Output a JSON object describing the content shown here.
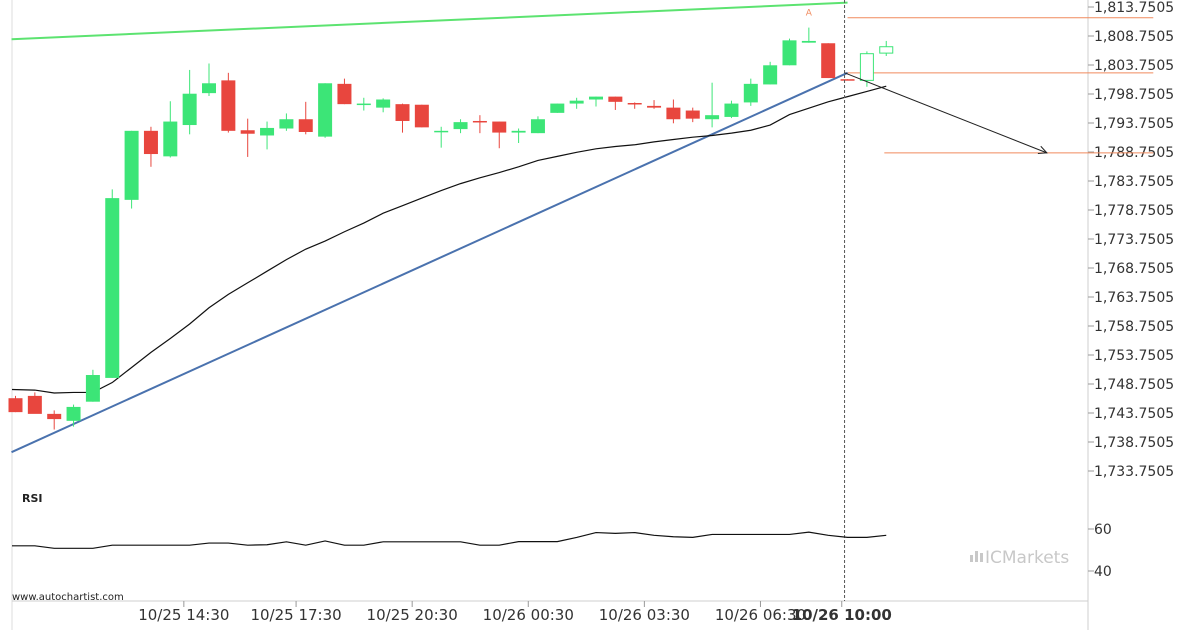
{
  "chart_data": {
    "type": "candlestick",
    "price_axis": {
      "ticks": [
        "1,813.7505",
        "1,808.7505",
        "1,803.7505",
        "1,798.7505",
        "1,793.7505",
        "1,788.7505",
        "1,783.7505",
        "1,778.7505",
        "1,773.7505",
        "1,768.7505",
        "1,763.7505",
        "1,758.7505",
        "1,753.7505",
        "1,748.7505",
        "1,743.7505",
        "1,738.7505",
        "1,733.7505"
      ],
      "tick_values": [
        1813.7505,
        1808.7505,
        1803.7505,
        1798.7505,
        1793.7505,
        1788.7505,
        1783.7505,
        1778.7505,
        1773.7505,
        1768.7505,
        1763.7505,
        1758.7505,
        1753.7505,
        1748.7505,
        1743.7505,
        1738.7505,
        1733.7505
      ]
    },
    "time_axis": {
      "labels": [
        "10/25 14:30",
        "10/25 17:30",
        "10/25 20:30",
        "10/26 00:30",
        "10/26 03:30",
        "10/26 06:30",
        "10/26 10:00"
      ],
      "label_candle_index": [
        8.7,
        14.5,
        20.5,
        26.5,
        32.5,
        38.5,
        42.7
      ],
      "highlight_label": "10/26 10:00"
    },
    "candles": [
      {
        "o": 1746.3,
        "h": 1746.7,
        "l": 1743.9,
        "c": 1743.9
      },
      {
        "o": 1746.7,
        "h": 1747.3,
        "l": 1743.9,
        "c": 1743.6
      },
      {
        "o": 1743.6,
        "h": 1744.2,
        "l": 1740.9,
        "c": 1742.7
      },
      {
        "o": 1742.4,
        "h": 1745.2,
        "l": 1741.4,
        "c": 1744.8
      },
      {
        "o": 1745.7,
        "h": 1751.2,
        "l": 1745.7,
        "c": 1750.3
      },
      {
        "o": 1749.8,
        "h": 1782.3,
        "l": 1749.8,
        "c": 1780.8
      },
      {
        "o": 1780.5,
        "h": 1792.4,
        "l": 1779.0,
        "c": 1792.4
      },
      {
        "o": 1792.4,
        "h": 1793.1,
        "l": 1786.2,
        "c": 1788.4
      },
      {
        "o": 1788.0,
        "h": 1797.5,
        "l": 1787.8,
        "c": 1794.0
      },
      {
        "o": 1793.4,
        "h": 1802.9,
        "l": 1791.8,
        "c": 1798.8
      },
      {
        "o": 1798.9,
        "h": 1804.0,
        "l": 1798.4,
        "c": 1800.6
      },
      {
        "o": 1801.1,
        "h": 1802.4,
        "l": 1792.1,
        "c": 1792.4
      },
      {
        "o": 1792.5,
        "h": 1794.5,
        "l": 1787.9,
        "c": 1791.9
      },
      {
        "o": 1791.6,
        "h": 1794.0,
        "l": 1789.2,
        "c": 1792.9
      },
      {
        "o": 1792.8,
        "h": 1795.4,
        "l": 1792.4,
        "c": 1794.4
      },
      {
        "o": 1794.4,
        "h": 1797.4,
        "l": 1791.8,
        "c": 1792.2
      },
      {
        "o": 1791.4,
        "h": 1800.6,
        "l": 1791.2,
        "c": 1800.6
      },
      {
        "o": 1800.5,
        "h": 1801.4,
        "l": 1797.0,
        "c": 1797.0
      },
      {
        "o": 1797.1,
        "h": 1798.1,
        "l": 1795.9,
        "c": 1797.1
      },
      {
        "o": 1796.4,
        "h": 1798.0,
        "l": 1795.6,
        "c": 1797.8
      },
      {
        "o": 1797.0,
        "h": 1797.1,
        "l": 1792.1,
        "c": 1794.1
      },
      {
        "o": 1796.9,
        "h": 1796.9,
        "l": 1793.0,
        "c": 1793.0
      },
      {
        "o": 1792.4,
        "h": 1793.1,
        "l": 1789.5,
        "c": 1792.4
      },
      {
        "o": 1792.7,
        "h": 1794.4,
        "l": 1792.0,
        "c": 1793.9
      },
      {
        "o": 1794.1,
        "h": 1795.1,
        "l": 1792.0,
        "c": 1793.9
      },
      {
        "o": 1794.0,
        "h": 1794.0,
        "l": 1789.4,
        "c": 1792.1
      },
      {
        "o": 1792.1,
        "h": 1792.8,
        "l": 1790.3,
        "c": 1792.4
      },
      {
        "o": 1792.0,
        "h": 1794.9,
        "l": 1792.0,
        "c": 1794.4
      },
      {
        "o": 1795.5,
        "h": 1797.1,
        "l": 1795.5,
        "c": 1797.1
      },
      {
        "o": 1797.1,
        "h": 1798.1,
        "l": 1796.2,
        "c": 1797.6
      },
      {
        "o": 1797.8,
        "h": 1798.3,
        "l": 1796.6,
        "c": 1798.3
      },
      {
        "o": 1798.3,
        "h": 1798.3,
        "l": 1796.0,
        "c": 1797.4
      },
      {
        "o": 1797.2,
        "h": 1797.3,
        "l": 1796.2,
        "c": 1797.1
      },
      {
        "o": 1796.7,
        "h": 1797.7,
        "l": 1796.2,
        "c": 1796.4
      },
      {
        "o": 1796.4,
        "h": 1797.8,
        "l": 1793.7,
        "c": 1794.4
      },
      {
        "o": 1795.9,
        "h": 1796.4,
        "l": 1793.9,
        "c": 1794.5
      },
      {
        "o": 1794.4,
        "h": 1800.7,
        "l": 1793.0,
        "c": 1795.1
      },
      {
        "o": 1794.8,
        "h": 1797.6,
        "l": 1794.6,
        "c": 1797.1
      },
      {
        "o": 1797.3,
        "h": 1801.4,
        "l": 1796.7,
        "c": 1800.5
      },
      {
        "o": 1800.4,
        "h": 1804.3,
        "l": 1800.4,
        "c": 1803.7
      },
      {
        "o": 1803.7,
        "h": 1808.3,
        "l": 1803.7,
        "c": 1808.0
      },
      {
        "o": 1807.6,
        "h": 1810.2,
        "l": 1807.6,
        "c": 1807.9
      },
      {
        "o": 1807.5,
        "h": 1807.5,
        "l": 1801.5,
        "c": 1801.5
      },
      {
        "o": 1801.3,
        "h": 1801.3,
        "l": 1801.2,
        "c": 1801.2
      },
      {
        "o": 1801.1,
        "h": 1806.1,
        "l": 1800.0,
        "c": 1805.7,
        "hollow": true
      },
      {
        "o": 1805.8,
        "h": 1807.9,
        "l": 1805.3,
        "c": 1806.9,
        "hollow": true
      }
    ],
    "moving_average": [
      1747.8,
      1747.7,
      1747.2,
      1747.3,
      1747.3,
      1749.0,
      1751.6,
      1754.2,
      1756.6,
      1759.1,
      1761.9,
      1764.2,
      1766.2,
      1768.2,
      1770.2,
      1772.0,
      1773.4,
      1775.0,
      1776.5,
      1778.2,
      1779.5,
      1780.8,
      1782.1,
      1783.3,
      1784.3,
      1785.2,
      1786.2,
      1787.3,
      1788.0,
      1788.7,
      1789.3,
      1789.7,
      1790.0,
      1790.5,
      1790.9,
      1791.3,
      1791.6,
      1792.0,
      1792.5,
      1793.4,
      1795.2,
      1796.3,
      1797.4,
      1798.3,
      1799.2,
      1800.1
    ],
    "resistance_line": {
      "points": [
        [
          0,
          1808.2
        ],
        [
          43,
          1814.5
        ]
      ],
      "color": "#5ce370"
    },
    "support_line": {
      "points": [
        [
          0,
          1737.0
        ],
        [
          43,
          1802.4
        ]
      ],
      "color": "#4a72ae"
    },
    "forecast": {
      "vertical_marker_index": 43,
      "levels": [
        {
          "value": 1811.9,
          "from_index": 43,
          "to_index": 58.8,
          "color": "#f08a5d"
        },
        {
          "value": 1802.4,
          "from_index": 43,
          "to_index": 58.8,
          "color": "#f08a5d"
        },
        {
          "value": 1788.6,
          "from_index": 44.9,
          "to_index": 58.8,
          "color": "#f08a5d"
        }
      ],
      "arrow": {
        "from": [
          43,
          1802.4
        ],
        "to": [
          53.3,
          1788.6
        ],
        "color": "#222222"
      },
      "marker_label": "A",
      "marker_index": 41,
      "marker_value": 1812.3
    },
    "rsi": {
      "label": "RSI",
      "ticks": [
        "60",
        "40"
      ],
      "tick_values": [
        60,
        40
      ],
      "values": [
        52.0,
        52.0,
        50.8,
        50.8,
        50.8,
        52.3,
        52.3,
        52.3,
        52.3,
        52.3,
        53.3,
        53.3,
        52.3,
        52.5,
        53.9,
        52.3,
        54.3,
        52.3,
        52.3,
        53.9,
        53.9,
        53.9,
        53.9,
        53.9,
        52.3,
        52.3,
        54.0,
        54.0,
        54.0,
        56.0,
        58.3,
        57.9,
        58.3,
        57.0,
        56.3,
        56.0,
        57.4,
        57.4,
        57.4,
        57.4,
        57.4,
        58.5,
        57.0,
        56.0,
        56.0,
        57.0
      ]
    },
    "colors": {
      "up": "#3ce577",
      "down": "#e8463e",
      "ma": "#111111",
      "grid": "#e0e0e0"
    }
  },
  "credit": "www.autochartist.com",
  "brand": "ICMarkets"
}
